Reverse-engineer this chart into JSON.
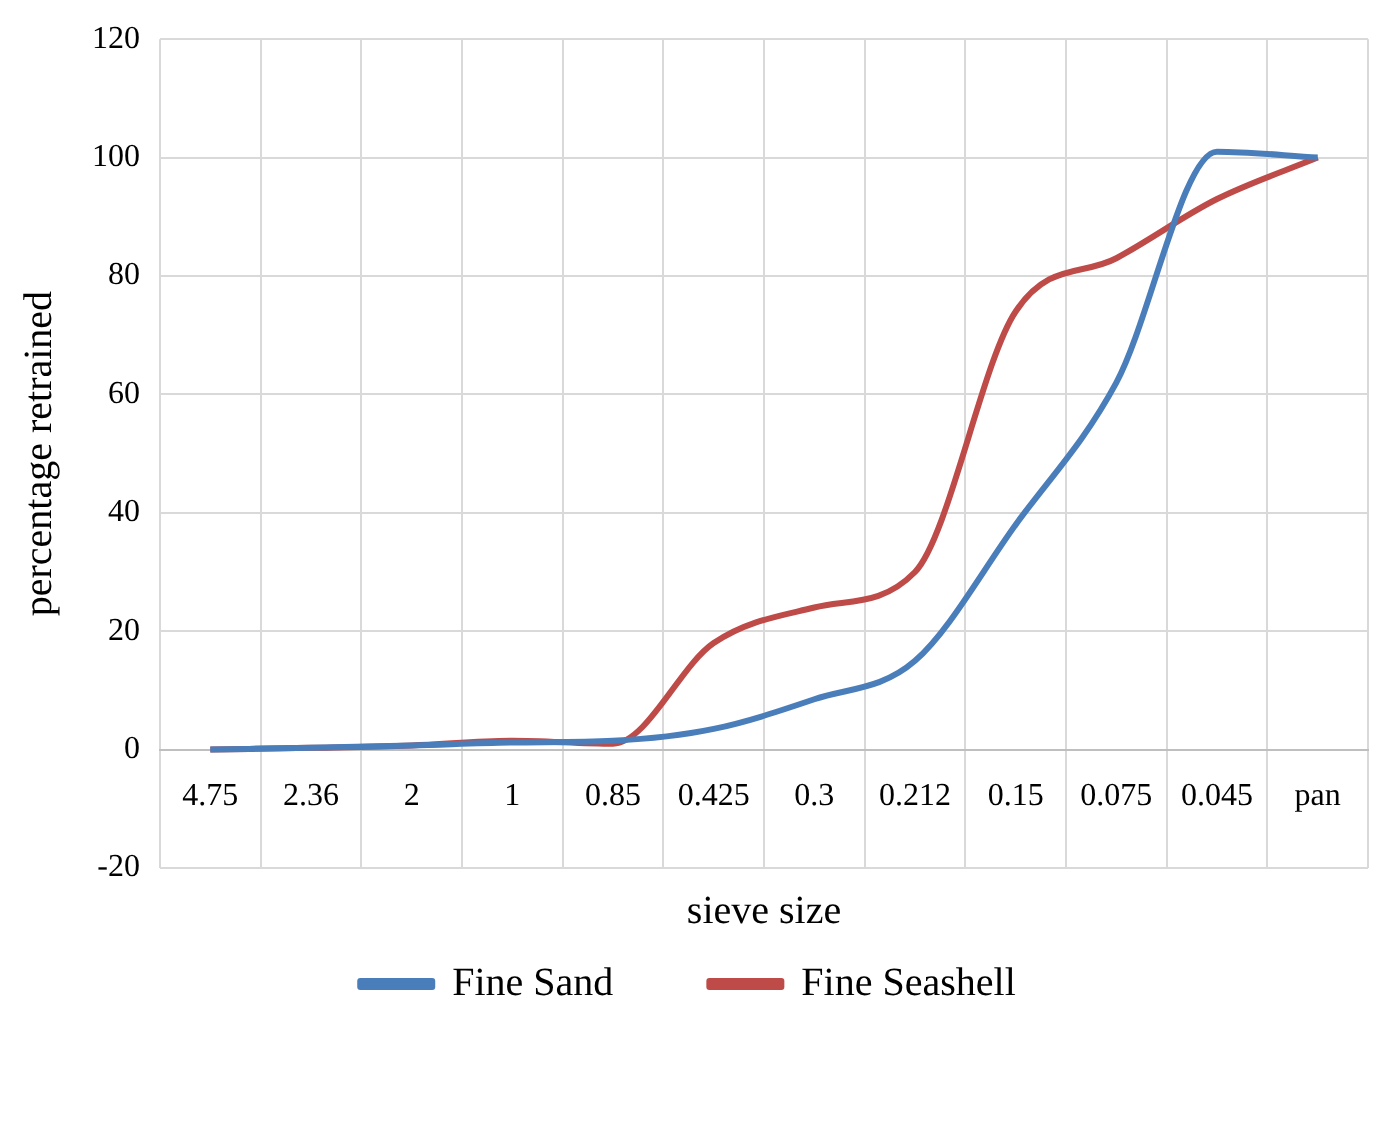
{
  "chart_data": {
    "type": "line",
    "xlabel": "sieve size",
    "ylabel": "percentage retrained",
    "categories": [
      "4.75",
      "2.36",
      "2",
      "1",
      "0.85",
      "0.425",
      "0.3",
      "0.212",
      "0.15",
      "0.075",
      "0.045",
      "pan"
    ],
    "series": [
      {
        "name": "Fine Sand",
        "color": "#4a7ebb",
        "values": [
          0,
          0.3,
          0.7,
          1.2,
          1.5,
          3.5,
          8.5,
          15,
          38,
          62,
          101,
          100
        ]
      },
      {
        "name": "Fine Seashell",
        "color": "#be4b48",
        "values": [
          0,
          0.3,
          0.7,
          1.5,
          1,
          18,
          24,
          30,
          74,
          83,
          93,
          100
        ]
      }
    ],
    "ylim": [
      -20,
      120
    ],
    "yticks": [
      -20,
      0,
      20,
      40,
      60,
      80,
      100,
      120
    ],
    "grid": true,
    "legend": "bottom",
    "marker": "none",
    "line_style": "solid"
  }
}
